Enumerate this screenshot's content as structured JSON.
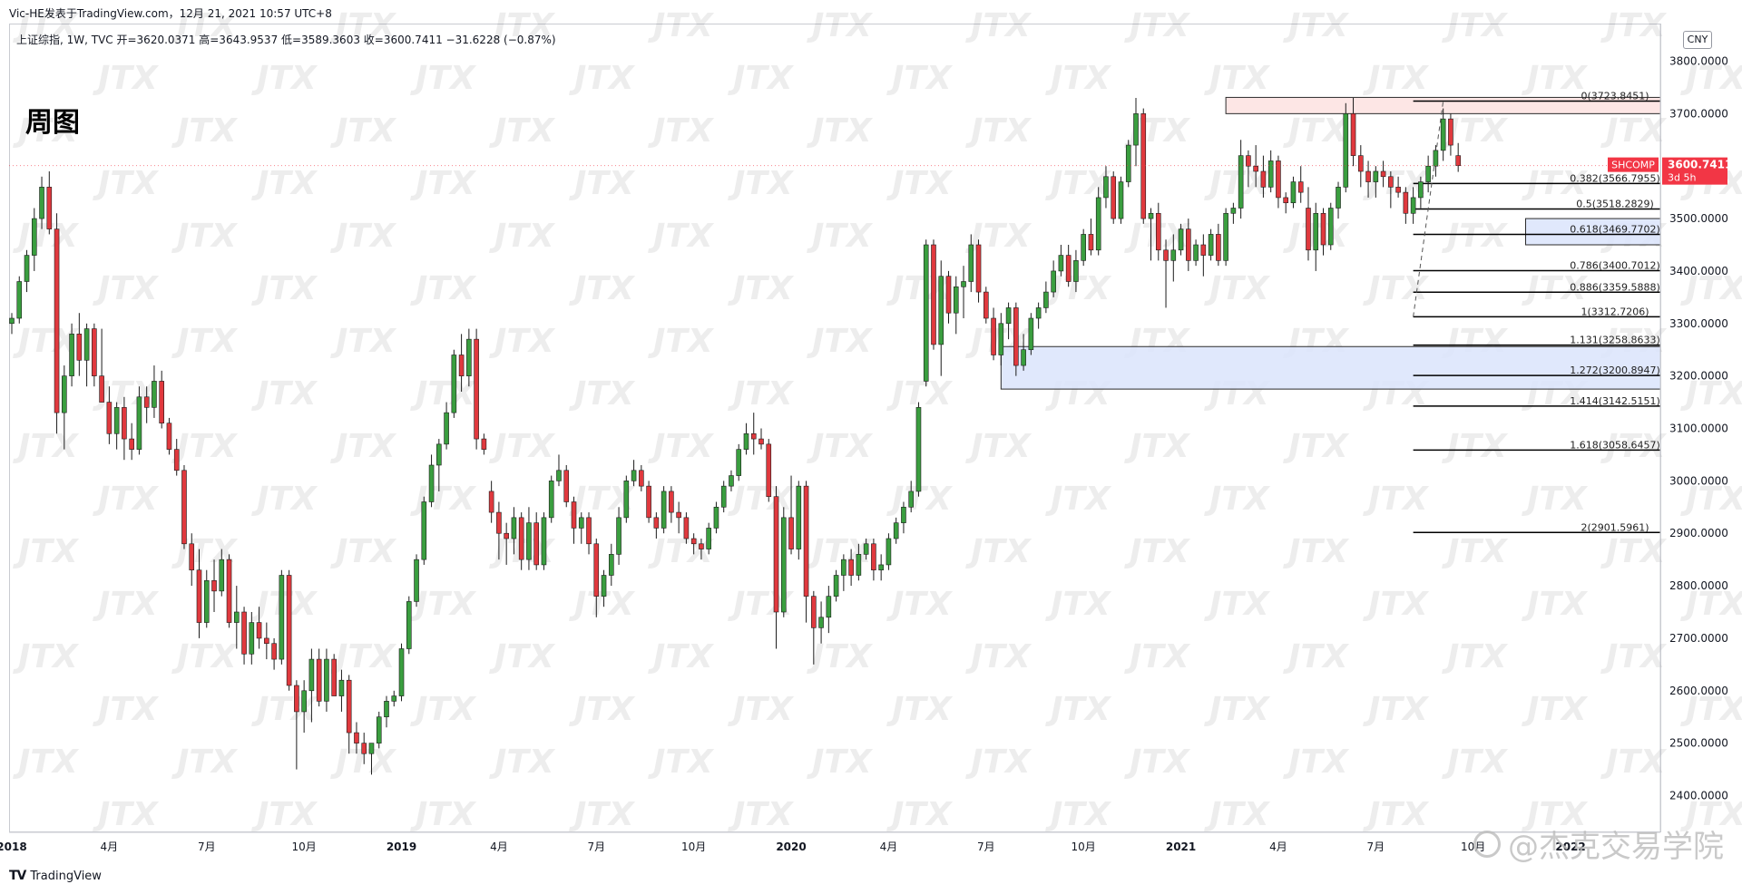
{
  "header": {
    "credit": "Vic-HE发表于TradingView.com，12月 21, 2021 10:57 UTC+8",
    "ohlc_line": "上证综指, 1W, TVC  开=3620.0371  高=3643.9537  低=3589.3603  收=3600.7411  −31.6228 (−0.87%)",
    "period_title": "周图",
    "currency": "CNY"
  },
  "footer": {
    "brand": "TradingView",
    "watermark": "@杰克交易学院",
    "bg_watermark": "JTX"
  },
  "price_badge": {
    "symbol": "SHCOMP",
    "price": "3600.7411",
    "countdown": "3d 5h",
    "color": "#f23645"
  },
  "colors": {
    "up": "#26a69a",
    "up_fill": "#3a9e3f",
    "down": "#e0393e",
    "fib": "#000000",
    "zone_blue": "#dbe4fb",
    "zone_red": "#fde2e0"
  },
  "chart_data": {
    "type": "candlestick",
    "instrument": "上证综指",
    "interval": "1W",
    "ylim": [
      2330,
      3870
    ],
    "y_ticks": [
      "3800.0000",
      "3700.0000",
      "3600.0000",
      "3500.0000",
      "3400.0000",
      "3300.0000",
      "3200.0000",
      "3100.0000",
      "3000.0000",
      "2900.0000",
      "2800.0000",
      "2700.0000",
      "2600.0000",
      "2500.0000",
      "2400.0000"
    ],
    "x_ticks": [
      {
        "week": 0,
        "label": "2018",
        "bold": true
      },
      {
        "week": 13,
        "label": "4月"
      },
      {
        "week": 26,
        "label": "7月"
      },
      {
        "week": 39,
        "label": "10月"
      },
      {
        "week": 52,
        "label": "2019",
        "bold": true
      },
      {
        "week": 65,
        "label": "4月"
      },
      {
        "week": 78,
        "label": "7月"
      },
      {
        "week": 91,
        "label": "10月"
      },
      {
        "week": 104,
        "label": "2020",
        "bold": true
      },
      {
        "week": 117,
        "label": "4月"
      },
      {
        "week": 130,
        "label": "7月"
      },
      {
        "week": 143,
        "label": "10月"
      },
      {
        "week": 156,
        "label": "2021",
        "bold": true
      },
      {
        "week": 169,
        "label": "4月"
      },
      {
        "week": 182,
        "label": "7月"
      },
      {
        "week": 195,
        "label": "10月"
      },
      {
        "week": 208,
        "label": "2022",
        "bold": true
      }
    ],
    "fibonacci": {
      "levels": [
        {
          "label": "0(3723.8451)",
          "price": 3723.8451
        },
        {
          "label": "0.382(3566.7955)",
          "price": 3566.7955
        },
        {
          "label": "0.5(3518.2829)",
          "price": 3518.2829
        },
        {
          "label": "0.618(3469.7702)",
          "price": 3469.7702
        },
        {
          "label": "0.786(3400.7012)",
          "price": 3400.7012
        },
        {
          "label": "0.886(3359.5888)",
          "price": 3359.5888
        },
        {
          "label": "1(3312.7206)",
          "price": 3312.7206
        },
        {
          "label": "1.131(3258.8633)",
          "price": 3258.8633
        },
        {
          "label": "1.272(3200.8947)",
          "price": 3200.8947
        },
        {
          "label": "1.414(3142.5151)",
          "price": 3142.5151
        },
        {
          "label": "1.618(3058.6457)",
          "price": 3058.6457
        },
        {
          "label": "2(2901.5961)",
          "price": 2901.5961
        }
      ],
      "start_week": 187
    },
    "zones": [
      {
        "kind": "resistance",
        "start_week": 162,
        "top": 3731,
        "bottom": 3700
      },
      {
        "kind": "support",
        "start_week": 202,
        "top": 3500,
        "bottom": 3450
      },
      {
        "kind": "support",
        "start_week": 132,
        "top": 3256,
        "bottom": 3175
      }
    ],
    "candles": [
      [
        3300,
        3320,
        3280,
        3310
      ],
      [
        3310,
        3390,
        3300,
        3380
      ],
      [
        3380,
        3440,
        3360,
        3430
      ],
      [
        3430,
        3520,
        3400,
        3500
      ],
      [
        3500,
        3580,
        3480,
        3560
      ],
      [
        3560,
        3590,
        3470,
        3480
      ],
      [
        3480,
        3510,
        3090,
        3130
      ],
      [
        3130,
        3220,
        3060,
        3200
      ],
      [
        3200,
        3300,
        3180,
        3280
      ],
      [
        3280,
        3320,
        3200,
        3230
      ],
      [
        3230,
        3300,
        3180,
        3290
      ],
      [
        3290,
        3300,
        3180,
        3200
      ],
      [
        3200,
        3290,
        3150,
        3150
      ],
      [
        3150,
        3180,
        3070,
        3090
      ],
      [
        3090,
        3150,
        3060,
        3140
      ],
      [
        3140,
        3160,
        3040,
        3080
      ],
      [
        3080,
        3110,
        3040,
        3060
      ],
      [
        3060,
        3180,
        3050,
        3160
      ],
      [
        3160,
        3180,
        3110,
        3140
      ],
      [
        3140,
        3220,
        3120,
        3190
      ],
      [
        3190,
        3210,
        3100,
        3110
      ],
      [
        3110,
        3120,
        3050,
        3060
      ],
      [
        3060,
        3080,
        3010,
        3020
      ],
      [
        3020,
        3030,
        2870,
        2880
      ],
      [
        2880,
        2900,
        2800,
        2830
      ],
      [
        2830,
        2870,
        2700,
        2730
      ],
      [
        2730,
        2830,
        2720,
        2810
      ],
      [
        2810,
        2850,
        2750,
        2790
      ],
      [
        2790,
        2870,
        2780,
        2850
      ],
      [
        2850,
        2860,
        2720,
        2730
      ],
      [
        2730,
        2800,
        2680,
        2750
      ],
      [
        2750,
        2760,
        2650,
        2670
      ],
      [
        2670,
        2750,
        2650,
        2730
      ],
      [
        2730,
        2760,
        2680,
        2700
      ],
      [
        2700,
        2730,
        2660,
        2690
      ],
      [
        2690,
        2700,
        2640,
        2660
      ],
      [
        2660,
        2830,
        2650,
        2820
      ],
      [
        2820,
        2830,
        2600,
        2610
      ],
      [
        2610,
        2620,
        2450,
        2560
      ],
      [
        2560,
        2620,
        2520,
        2600
      ],
      [
        2600,
        2680,
        2540,
        2660
      ],
      [
        2660,
        2680,
        2570,
        2580
      ],
      [
        2580,
        2680,
        2560,
        2660
      ],
      [
        2660,
        2670,
        2590,
        2590
      ],
      [
        2590,
        2640,
        2560,
        2620
      ],
      [
        2620,
        2630,
        2480,
        2520
      ],
      [
        2520,
        2540,
        2480,
        2500
      ],
      [
        2500,
        2520,
        2460,
        2480
      ],
      [
        2480,
        2500,
        2440,
        2500
      ],
      [
        2500,
        2560,
        2490,
        2550
      ],
      [
        2550,
        2590,
        2530,
        2580
      ],
      [
        2580,
        2600,
        2570,
        2590
      ],
      [
        2590,
        2690,
        2580,
        2680
      ],
      [
        2680,
        2780,
        2670,
        2770
      ],
      [
        2770,
        2860,
        2760,
        2850
      ],
      [
        2850,
        2970,
        2840,
        2960
      ],
      [
        2960,
        3050,
        2950,
        3030
      ],
      [
        3030,
        3080,
        2980,
        3070
      ],
      [
        3070,
        3150,
        3060,
        3130
      ],
      [
        3130,
        3250,
        3120,
        3240
      ],
      [
        3240,
        3280,
        3170,
        3200
      ],
      [
        3200,
        3290,
        3180,
        3270
      ],
      [
        3270,
        3290,
        3060,
        3080
      ],
      [
        3080,
        3090,
        3050,
        3060
      ],
      [
        2980,
        3000,
        2920,
        2940
      ],
      [
        2940,
        2960,
        2850,
        2900
      ],
      [
        2900,
        2920,
        2840,
        2890
      ],
      [
        2890,
        2950,
        2860,
        2930
      ],
      [
        2930,
        2940,
        2830,
        2850
      ],
      [
        2850,
        2950,
        2830,
        2920
      ],
      [
        2920,
        2940,
        2830,
        2840
      ],
      [
        2840,
        2940,
        2830,
        2930
      ],
      [
        2930,
        3010,
        2920,
        3000
      ],
      [
        3000,
        3050,
        2990,
        3020
      ],
      [
        3020,
        3030,
        2950,
        2960
      ],
      [
        2960,
        2970,
        2880,
        2910
      ],
      [
        2910,
        2940,
        2880,
        2930
      ],
      [
        2930,
        2940,
        2860,
        2880
      ],
      [
        2880,
        2890,
        2740,
        2780
      ],
      [
        2780,
        2830,
        2760,
        2820
      ],
      [
        2820,
        2880,
        2800,
        2860
      ],
      [
        2860,
        2950,
        2840,
        2930
      ],
      [
        2930,
        3010,
        2920,
        3000
      ],
      [
        3000,
        3040,
        2990,
        3020
      ],
      [
        3020,
        3030,
        2980,
        2990
      ],
      [
        2990,
        3000,
        2920,
        2930
      ],
      [
        2930,
        2940,
        2890,
        2910
      ],
      [
        2910,
        2990,
        2900,
        2980
      ],
      [
        2980,
        2990,
        2920,
        2940
      ],
      [
        2940,
        2960,
        2900,
        2930
      ],
      [
        2930,
        2940,
        2880,
        2890
      ],
      [
        2890,
        2900,
        2860,
        2880
      ],
      [
        2880,
        2890,
        2850,
        2870
      ],
      [
        2870,
        2920,
        2860,
        2910
      ],
      [
        2910,
        2960,
        2900,
        2950
      ],
      [
        2950,
        3000,
        2940,
        2990
      ],
      [
        2990,
        3020,
        2980,
        3010
      ],
      [
        3010,
        3070,
        3000,
        3060
      ],
      [
        3060,
        3110,
        3050,
        3090
      ],
      [
        3090,
        3130,
        3050,
        3080
      ],
      [
        3080,
        3100,
        3060,
        3070
      ],
      [
        3070,
        3080,
        2960,
        2970
      ],
      [
        2970,
        2990,
        2680,
        2750
      ],
      [
        2750,
        2950,
        2740,
        2930
      ],
      [
        2930,
        3010,
        2860,
        2870
      ],
      [
        2870,
        3000,
        2850,
        2990
      ],
      [
        2990,
        3000,
        2730,
        2780
      ],
      [
        2780,
        2790,
        2650,
        2720
      ],
      [
        2720,
        2770,
        2690,
        2740
      ],
      [
        2740,
        2800,
        2710,
        2780
      ],
      [
        2780,
        2830,
        2770,
        2820
      ],
      [
        2820,
        2860,
        2790,
        2850
      ],
      [
        2850,
        2870,
        2800,
        2820
      ],
      [
        2820,
        2880,
        2810,
        2860
      ],
      [
        2860,
        2890,
        2850,
        2880
      ],
      [
        2880,
        2890,
        2810,
        2830
      ],
      [
        2830,
        2860,
        2810,
        2840
      ],
      [
        2840,
        2900,
        2830,
        2890
      ],
      [
        2890,
        2930,
        2880,
        2920
      ],
      [
        2920,
        2960,
        2900,
        2950
      ],
      [
        2950,
        3000,
        2940,
        2980
      ],
      [
        2980,
        3150,
        2970,
        3140
      ],
      [
        3190,
        3460,
        3180,
        3450
      ],
      [
        3450,
        3460,
        3250,
        3260
      ],
      [
        3260,
        3420,
        3200,
        3390
      ],
      [
        3390,
        3400,
        3300,
        3320
      ],
      [
        3320,
        3390,
        3280,
        3370
      ],
      [
        3370,
        3410,
        3310,
        3380
      ],
      [
        3380,
        3470,
        3360,
        3450
      ],
      [
        3450,
        3460,
        3340,
        3360
      ],
      [
        3360,
        3370,
        3300,
        3310
      ],
      [
        3310,
        3330,
        3230,
        3240
      ],
      [
        3240,
        3320,
        3220,
        3300
      ],
      [
        3300,
        3340,
        3270,
        3330
      ],
      [
        3330,
        3340,
        3200,
        3220
      ],
      [
        3220,
        3280,
        3210,
        3250
      ],
      [
        3250,
        3320,
        3240,
        3310
      ],
      [
        3310,
        3340,
        3290,
        3330
      ],
      [
        3330,
        3380,
        3320,
        3360
      ],
      [
        3360,
        3420,
        3350,
        3400
      ],
      [
        3400,
        3450,
        3390,
        3430
      ],
      [
        3430,
        3450,
        3370,
        3380
      ],
      [
        3380,
        3440,
        3360,
        3420
      ],
      [
        3420,
        3480,
        3410,
        3470
      ],
      [
        3470,
        3500,
        3430,
        3440
      ],
      [
        3440,
        3560,
        3430,
        3540
      ],
      [
        3540,
        3600,
        3520,
        3580
      ],
      [
        3580,
        3590,
        3490,
        3500
      ],
      [
        3500,
        3580,
        3490,
        3570
      ],
      [
        3570,
        3650,
        3560,
        3640
      ],
      [
        3640,
        3730,
        3600,
        3700
      ],
      [
        3700,
        3710,
        3490,
        3500
      ],
      [
        3500,
        3520,
        3420,
        3510
      ],
      [
        3510,
        3530,
        3420,
        3440
      ],
      [
        3440,
        3460,
        3330,
        3420
      ],
      [
        3420,
        3470,
        3380,
        3440
      ],
      [
        3440,
        3490,
        3430,
        3480
      ],
      [
        3480,
        3500,
        3400,
        3420
      ],
      [
        3420,
        3460,
        3410,
        3450
      ],
      [
        3450,
        3470,
        3390,
        3430
      ],
      [
        3430,
        3480,
        3420,
        3470
      ],
      [
        3470,
        3490,
        3410,
        3420
      ],
      [
        3420,
        3520,
        3410,
        3510
      ],
      [
        3510,
        3530,
        3490,
        3520
      ],
      [
        3520,
        3650,
        3500,
        3620
      ],
      [
        3620,
        3630,
        3560,
        3600
      ],
      [
        3600,
        3640,
        3560,
        3590
      ],
      [
        3590,
        3620,
        3540,
        3560
      ],
      [
        3560,
        3630,
        3550,
        3610
      ],
      [
        3610,
        3620,
        3520,
        3540
      ],
      [
        3540,
        3550,
        3510,
        3530
      ],
      [
        3530,
        3580,
        3520,
        3570
      ],
      [
        3570,
        3600,
        3530,
        3550
      ],
      [
        3520,
        3560,
        3420,
        3440
      ],
      [
        3440,
        3530,
        3400,
        3510
      ],
      [
        3510,
        3520,
        3430,
        3450
      ],
      [
        3450,
        3530,
        3440,
        3520
      ],
      [
        3520,
        3570,
        3500,
        3560
      ],
      [
        3560,
        3720,
        3550,
        3700
      ],
      [
        3700,
        3730,
        3600,
        3620
      ],
      [
        3620,
        3640,
        3560,
        3590
      ],
      [
        3590,
        3610,
        3540,
        3570
      ],
      [
        3570,
        3600,
        3540,
        3590
      ],
      [
        3590,
        3610,
        3560,
        3580
      ],
      [
        3580,
        3590,
        3520,
        3560
      ],
      [
        3560,
        3580,
        3540,
        3550
      ],
      [
        3550,
        3560,
        3490,
        3510
      ],
      [
        3510,
        3560,
        3490,
        3540
      ],
      [
        3540,
        3580,
        3520,
        3570
      ],
      [
        3570,
        3620,
        3550,
        3600
      ],
      [
        3600,
        3640,
        3580,
        3630
      ],
      [
        3630,
        3710,
        3610,
        3690
      ],
      [
        3690,
        3700,
        3620,
        3640
      ],
      [
        3620,
        3644,
        3589,
        3601
      ]
    ]
  }
}
